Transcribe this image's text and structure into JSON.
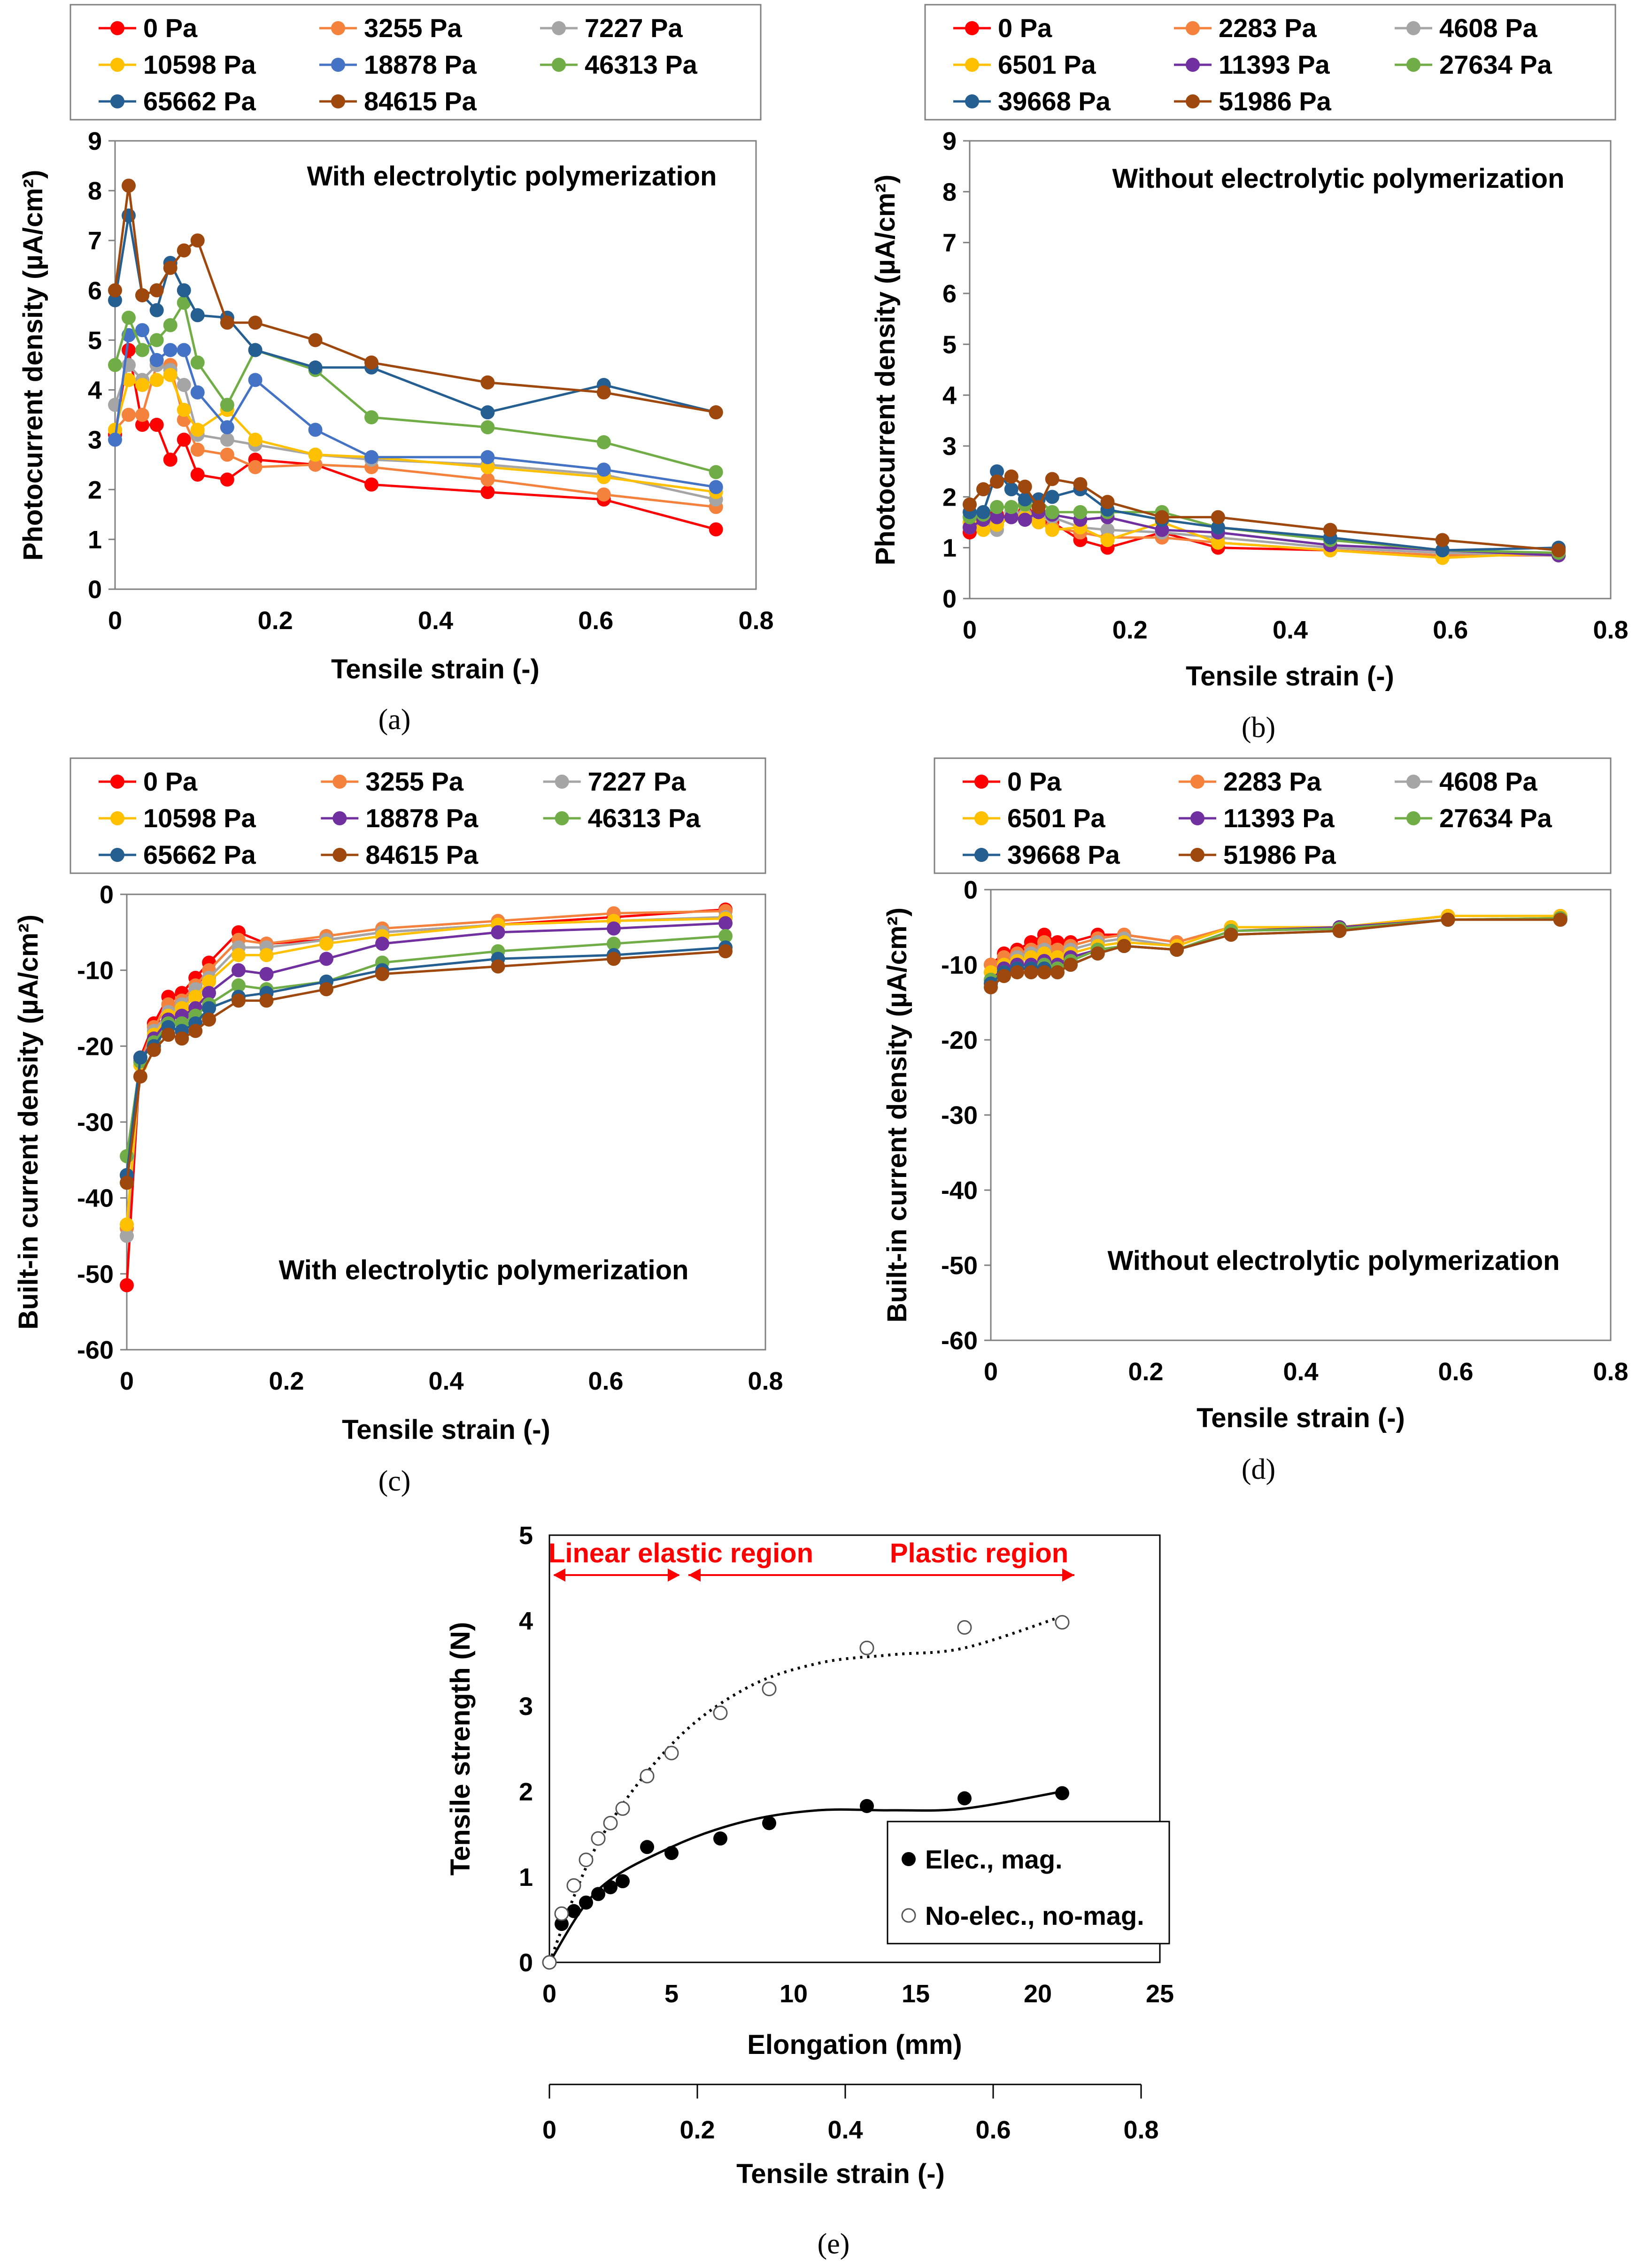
{
  "colors": {
    "series": [
      "#FF0000",
      "#F4823C",
      "#A5A5A5",
      "#FFC000",
      "#4472C4",
      "#70AD47",
      "#255E91",
      "#9E480E"
    ],
    "series_purple": "#7030A0",
    "region": "#FF0000"
  },
  "chart_data": [
    {
      "id": "a",
      "type": "line",
      "panel_label": "(a)",
      "annotation": "With electrolytic polymerization",
      "xlabel": "Tensile  strain   (-)",
      "ylabel": "Photocurrent density  (µA/cm²)",
      "xlim": [
        0,
        0.8
      ],
      "ylim": [
        0,
        9
      ],
      "xticks": [
        "0",
        "0.2",
        "0.4",
        "0.6",
        "0.8"
      ],
      "yticks": [
        "0",
        "1",
        "2",
        "3",
        "4",
        "5",
        "6",
        "7",
        "8",
        "9"
      ],
      "x": [
        0,
        0.017,
        0.034,
        0.052,
        0.069,
        0.086,
        0.103,
        0.14,
        0.175,
        0.25,
        0.32,
        0.465,
        0.61,
        0.75
      ],
      "series": [
        {
          "name": "0 Pa",
          "values": [
            3.1,
            4.8,
            3.3,
            3.3,
            2.6,
            3.0,
            2.3,
            2.2,
            2.6,
            2.5,
            2.1,
            1.95,
            1.8,
            1.2
          ]
        },
        {
          "name": "3255 Pa",
          "values": [
            3.2,
            3.5,
            3.5,
            4.5,
            4.5,
            3.4,
            2.8,
            2.7,
            2.45,
            2.5,
            2.45,
            2.2,
            1.9,
            1.65
          ]
        },
        {
          "name": "7227 Pa",
          "values": [
            3.7,
            4.5,
            4.2,
            4.5,
            4.4,
            4.1,
            3.1,
            3.0,
            2.9,
            2.7,
            2.6,
            2.5,
            2.3,
            1.8
          ]
        },
        {
          "name": "10598 Pa",
          "values": [
            3.2,
            4.2,
            4.1,
            4.2,
            4.3,
            3.6,
            3.2,
            3.6,
            3.0,
            2.7,
            2.65,
            2.45,
            2.25,
            1.95
          ]
        },
        {
          "name": "18878 Pa",
          "values": [
            3.0,
            5.1,
            5.2,
            4.6,
            4.8,
            4.8,
            3.95,
            3.25,
            4.2,
            3.2,
            2.65,
            2.65,
            2.4,
            2.05
          ]
        },
        {
          "name": "46313 Pa",
          "values": [
            4.5,
            5.45,
            4.8,
            5.0,
            5.3,
            5.75,
            4.55,
            3.7,
            4.8,
            4.4,
            3.45,
            3.25,
            2.95,
            2.35
          ]
        },
        {
          "name": "65662 Pa",
          "values": [
            5.8,
            7.5,
            5.9,
            5.6,
            6.55,
            6.0,
            5.5,
            5.45,
            4.8,
            4.45,
            4.45,
            3.55,
            4.1,
            3.55
          ]
        },
        {
          "name": "84615 Pa",
          "values": [
            6.0,
            8.1,
            5.9,
            6.0,
            6.45,
            6.8,
            7.0,
            5.35,
            5.35,
            5.0,
            4.55,
            4.15,
            3.95,
            3.55
          ]
        }
      ]
    },
    {
      "id": "b",
      "type": "line",
      "panel_label": "(b)",
      "annotation": "Without electrolytic polymerization",
      "xlabel": "Tensile strain   (-)",
      "ylabel": "Photocurrent density  (µA/cm²)",
      "xlim": [
        0,
        0.8
      ],
      "ylim": [
        0,
        9
      ],
      "xticks": [
        "0",
        "0.2",
        "0.4",
        "0.6",
        "0.8"
      ],
      "yticks": [
        "0",
        "1",
        "2",
        "3",
        "4",
        "5",
        "6",
        "7",
        "8",
        "9"
      ],
      "x": [
        0,
        0.017,
        0.034,
        0.052,
        0.069,
        0.086,
        0.103,
        0.138,
        0.172,
        0.24,
        0.31,
        0.45,
        0.59,
        0.735
      ],
      "series": [
        {
          "name": "0 Pa",
          "values": [
            1.3,
            1.5,
            1.65,
            1.6,
            1.7,
            1.5,
            1.5,
            1.15,
            1.0,
            1.3,
            1.0,
            0.95,
            0.85,
            0.85
          ]
        },
        {
          "name": "2283 Pa",
          "values": [
            1.4,
            1.45,
            1.5,
            1.7,
            1.6,
            1.5,
            1.4,
            1.3,
            1.2,
            1.2,
            1.1,
            0.95,
            0.85,
            0.85
          ]
        },
        {
          "name": "4608 Pa",
          "values": [
            1.4,
            1.55,
            1.35,
            1.7,
            1.65,
            1.6,
            1.6,
            1.4,
            1.35,
            1.3,
            1.2,
            1.0,
            0.9,
            0.85
          ]
        },
        {
          "name": "6501 Pa",
          "values": [
            1.5,
            1.35,
            1.45,
            1.6,
            1.6,
            1.5,
            1.35,
            1.4,
            1.15,
            1.5,
            1.1,
            0.95,
            0.8,
            0.9
          ]
        },
        {
          "name": "11393 Pa",
          "values": [
            1.4,
            1.55,
            1.6,
            1.6,
            1.55,
            1.7,
            1.65,
            1.55,
            1.6,
            1.35,
            1.3,
            1.05,
            0.95,
            0.85
          ]
        },
        {
          "name": "27634 Pa",
          "values": [
            1.6,
            1.65,
            1.8,
            1.8,
            1.85,
            1.95,
            1.7,
            1.7,
            1.7,
            1.7,
            1.4,
            1.15,
            0.95,
            0.9
          ]
        },
        {
          "name": "39668 Pa",
          "values": [
            1.7,
            1.7,
            2.5,
            2.15,
            1.95,
            1.95,
            2.0,
            2.15,
            1.75,
            1.55,
            1.4,
            1.2,
            0.95,
            1.0
          ]
        },
        {
          "name": "51986 Pa",
          "values": [
            1.85,
            2.15,
            2.3,
            2.4,
            2.2,
            1.8,
            2.35,
            2.25,
            1.9,
            1.6,
            1.6,
            1.35,
            1.15,
            0.95
          ]
        }
      ]
    },
    {
      "id": "c",
      "type": "line",
      "panel_label": "(c)",
      "annotation": "With electrolytic polymerization",
      "xlabel": "Tensile  strain   (-)",
      "ylabel": "Built-in current density  (µA/cm²)",
      "xlim": [
        0,
        0.8
      ],
      "ylim": [
        -60,
        0
      ],
      "xticks": [
        "0",
        "0.2",
        "0.4",
        "0.6",
        "0.8"
      ],
      "yticks": [
        "-60",
        "-50",
        "-40",
        "-30",
        "-20",
        "-10",
        "0"
      ],
      "x": [
        0,
        0.017,
        0.034,
        0.052,
        0.069,
        0.086,
        0.103,
        0.14,
        0.175,
        0.25,
        0.32,
        0.465,
        0.61,
        0.75
      ],
      "series": [
        {
          "name": "0 Pa",
          "values": [
            -51.5,
            -21.5,
            -17,
            -13.5,
            -13,
            -11,
            -9,
            -5,
            -6.5,
            -6,
            -5,
            -4,
            -3,
            -2
          ]
        },
        {
          "name": "3255 Pa",
          "values": [
            -44,
            -22,
            -17.5,
            -14.5,
            -14,
            -12,
            -10,
            -6,
            -6.5,
            -5.5,
            -4.5,
            -3.5,
            -2.5,
            -2.2
          ]
        },
        {
          "name": "7227 Pa",
          "values": [
            -45,
            -22.5,
            -18,
            -15.5,
            -14.5,
            -12.5,
            -11,
            -7,
            -7,
            -6,
            -5,
            -4,
            -3.5,
            -3
          ]
        },
        {
          "name": "10598 Pa",
          "values": [
            -43.5,
            -22.5,
            -18.5,
            -16,
            -15,
            -13.5,
            -11.5,
            -8,
            -8,
            -6.5,
            -5.5,
            -4,
            -3.5,
            -3.2
          ]
        },
        {
          "name": "18878 Pa",
          "values": [
            -37,
            -22,
            -19,
            -16.5,
            -16,
            -15,
            -13,
            -10,
            -10.5,
            -8.5,
            -6.5,
            -5,
            -4.5,
            -3.8
          ]
        },
        {
          "name": "46313 Pa",
          "values": [
            -34.5,
            -22,
            -19.5,
            -17,
            -17,
            -16,
            -14.5,
            -12,
            -12.5,
            -11.5,
            -9,
            -7.5,
            -6.5,
            -5.5
          ]
        },
        {
          "name": "65662 Pa",
          "values": [
            -37,
            -21.5,
            -20,
            -17.5,
            -18,
            -17,
            -15,
            -13.5,
            -13,
            -11.5,
            -10,
            -8.5,
            -8,
            -7
          ]
        },
        {
          "name": "84615 Pa",
          "values": [
            -38,
            -24,
            -20.5,
            -18.5,
            -19,
            -18,
            -16.5,
            -14,
            -14,
            -12.5,
            -10.5,
            -9.5,
            -8.5,
            -7.5
          ]
        }
      ]
    },
    {
      "id": "d",
      "type": "line",
      "panel_label": "(d)",
      "annotation": "Without electrolytic polymerization",
      "xlabel": "Tensile strain   (-)",
      "ylabel": "Built-in current density  (µA/cm²)",
      "xlim": [
        0,
        0.8
      ],
      "ylim": [
        -60,
        0
      ],
      "xticks": [
        "0",
        "0.2",
        "0.4",
        "0.6",
        "0.8"
      ],
      "yticks": [
        "-60",
        "-50",
        "-40",
        "-30",
        "-20",
        "-10",
        "0"
      ],
      "x": [
        0,
        0.017,
        0.034,
        0.052,
        0.069,
        0.086,
        0.103,
        0.138,
        0.172,
        0.24,
        0.31,
        0.45,
        0.59,
        0.735
      ],
      "series": [
        {
          "name": "0 Pa",
          "values": [
            -10,
            -8.5,
            -8,
            -7,
            -6,
            -7,
            -7,
            -6,
            -6,
            -7,
            -5,
            -5,
            -3.5,
            -3.5
          ]
        },
        {
          "name": "2283 Pa",
          "values": [
            -10,
            -9,
            -8.5,
            -8,
            -7,
            -8,
            -7.5,
            -6.5,
            -6,
            -7,
            -5,
            -5,
            -3.5,
            -3.5
          ]
        },
        {
          "name": "4608 Pa",
          "values": [
            -11,
            -10,
            -9,
            -8.5,
            -8,
            -9,
            -8,
            -7,
            -6.5,
            -7.5,
            -5,
            -5,
            -3.5,
            -3.5
          ]
        },
        {
          "name": "6501 Pa",
          "values": [
            -11,
            -10,
            -9.5,
            -9,
            -8.5,
            -9,
            -8.5,
            -7.5,
            -7,
            -7.5,
            -5,
            -5,
            -3.5,
            -3.5
          ]
        },
        {
          "name": "11393 Pa",
          "values": [
            -12,
            -10.5,
            -10,
            -10,
            -9.5,
            -10,
            -9,
            -8,
            -7.5,
            -8,
            -5.5,
            -5,
            -4,
            -3.8
          ]
        },
        {
          "name": "27634 Pa",
          "values": [
            -12,
            -11,
            -10.5,
            -10.5,
            -10,
            -10.5,
            -9.5,
            -8,
            -7.5,
            -8,
            -5.5,
            -5.2,
            -4,
            -3.8
          ]
        },
        {
          "name": "39668 Pa",
          "values": [
            -12.5,
            -11,
            -10.5,
            -10.5,
            -10.5,
            -11,
            -10,
            -8.5,
            -7.5,
            -8,
            -6,
            -5.5,
            -4,
            -4
          ]
        },
        {
          "name": "51986 Pa",
          "values": [
            -13,
            -11.5,
            -11,
            -11,
            -11,
            -11,
            -10,
            -8.5,
            -7.5,
            -8,
            -6,
            -5.5,
            -4,
            -4
          ]
        }
      ]
    },
    {
      "id": "e",
      "type": "scatter",
      "panel_label": "(e)",
      "xlabel": "Elongation  (mm)",
      "ylabel": "Tensile strength (N)",
      "secondary_xlabel": "Tensile strain  (-)",
      "xlim": [
        0,
        25
      ],
      "ylim": [
        0,
        5
      ],
      "secondary_xlim": [
        0,
        0.8
      ],
      "xticks": [
        "0",
        "5",
        "10",
        "15",
        "20",
        "25"
      ],
      "yticks": [
        "0",
        "1",
        "2",
        "3",
        "4",
        "5"
      ],
      "secondary_xticks": [
        "0",
        "0.2",
        "0.4",
        "0.6",
        "0.8"
      ],
      "regions": {
        "linear": "Linear elastic region",
        "plastic": "Plastic region",
        "boundary_mm": 5.5
      },
      "series": [
        {
          "name": "Elec., mag.",
          "marker": "filled",
          "x": [
            0,
            0.5,
            1,
            1.5,
            2,
            2.5,
            3,
            4,
            5,
            7,
            9,
            13,
            17,
            21
          ],
          "values": [
            0,
            0.45,
            0.6,
            0.7,
            0.8,
            0.88,
            0.95,
            1.35,
            1.28,
            1.45,
            1.63,
            1.83,
            1.92,
            1.98
          ]
        },
        {
          "name": "No-elec., no-mag.",
          "marker": "hollow",
          "x": [
            0,
            0.5,
            1,
            1.5,
            2,
            2.5,
            3,
            4,
            5,
            7,
            9,
            13,
            17,
            21
          ],
          "values": [
            0,
            0.57,
            0.9,
            1.2,
            1.45,
            1.63,
            1.8,
            2.18,
            2.45,
            2.92,
            3.2,
            3.68,
            3.92,
            3.98
          ]
        }
      ]
    }
  ]
}
